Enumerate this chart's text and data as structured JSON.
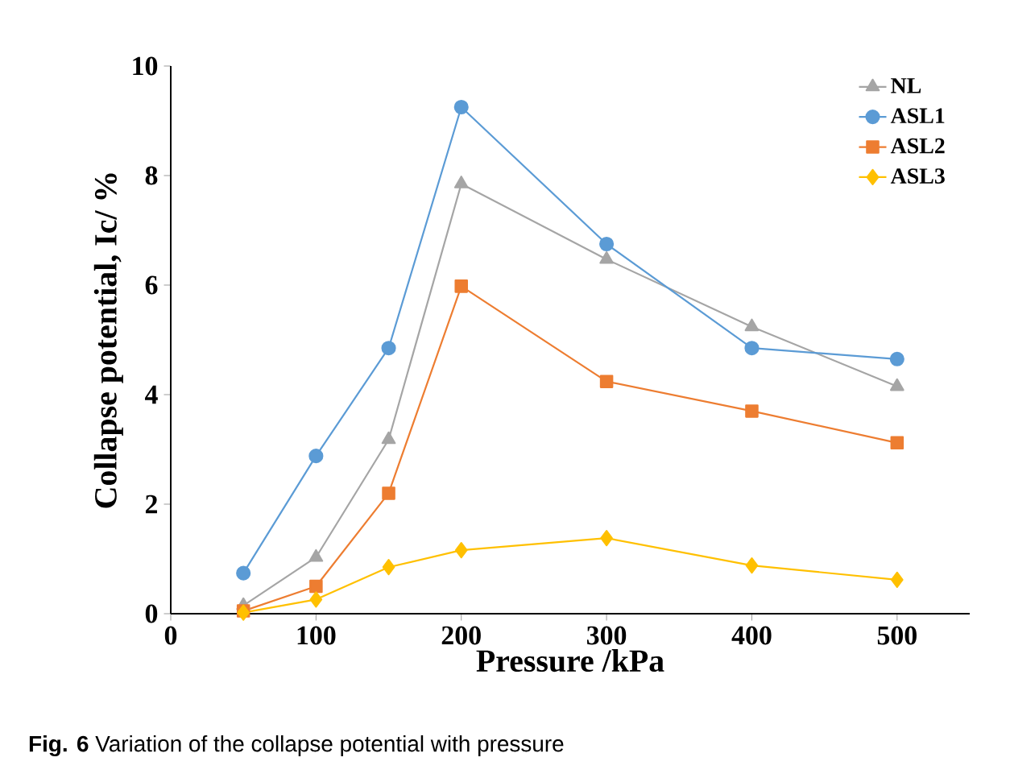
{
  "chart_data": {
    "type": "line",
    "xlabel": "Pressure /kPa",
    "ylabel": "Collapse potential, Ic/ %",
    "x": [
      50,
      100,
      150,
      200,
      300,
      400,
      500
    ],
    "series": [
      {
        "name": "NL",
        "color": "#a5a5a5",
        "marker": "triangle",
        "values": [
          0.15,
          1.03,
          3.18,
          7.85,
          6.47,
          5.24,
          4.15
        ]
      },
      {
        "name": "ASL1",
        "color": "#5b9bd5",
        "marker": "circle",
        "values": [
          0.74,
          2.88,
          4.85,
          9.25,
          6.75,
          4.85,
          4.65
        ]
      },
      {
        "name": "ASL2",
        "color": "#ed7d31",
        "marker": "square",
        "values": [
          0.05,
          0.5,
          2.2,
          5.98,
          4.24,
          3.7,
          3.12
        ]
      },
      {
        "name": "ASL3",
        "color": "#ffc000",
        "marker": "diamond",
        "values": [
          0.02,
          0.26,
          0.85,
          1.16,
          1.38,
          0.88,
          0.62
        ]
      }
    ],
    "xlim": [
      0,
      550
    ],
    "xticks": [
      0,
      100,
      200,
      300,
      400,
      500
    ],
    "ylim": [
      0,
      10
    ],
    "yticks": [
      0,
      2,
      4,
      6,
      8,
      10
    ],
    "grid": false,
    "legend": "top right",
    "line_style": "solid",
    "annotations": [
      "**Fig. 6** Variation of the collapse potential with pressure"
    ]
  }
}
